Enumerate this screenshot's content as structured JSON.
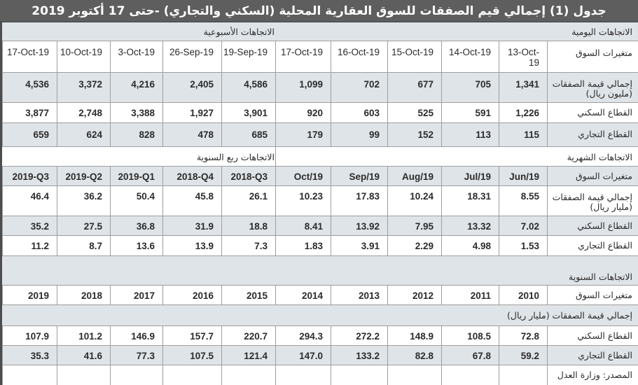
{
  "title": "جدول (1) إجمالي قيم الصفقات للسوق العقارية المحلية (السكني والتجاري) -حتى 17 أكتوبر 2019",
  "daily_weekly": {
    "daily_title": "الاتجاهات اليومية",
    "weekly_title": "الاتجاهات الأسبوعية",
    "row_labels": {
      "header": "متغيرات السوق",
      "total": "إجمالي قيمة الصفقات (مليون ريال)",
      "residential": "القطاع السكني",
      "commercial": "القطاع التجاري"
    },
    "columns": [
      "13-Oct-19",
      "14-Oct-19",
      "15-Oct-19",
      "16-Oct-19",
      "17-Oct-19",
      "19-Sep-19",
      "26-Sep-19",
      "3-Oct-19",
      "10-Oct-19",
      "17-Oct-19"
    ],
    "total": [
      "1,341",
      "705",
      "677",
      "702",
      "1,099",
      "4,586",
      "2,405",
      "4,216",
      "3,372",
      "4,536"
    ],
    "residential": [
      "1,226",
      "591",
      "525",
      "603",
      "920",
      "3,901",
      "1,927",
      "3,388",
      "2,748",
      "3,877"
    ],
    "commercial": [
      "115",
      "113",
      "152",
      "99",
      "179",
      "685",
      "478",
      "828",
      "624",
      "659"
    ]
  },
  "monthly_quarterly": {
    "monthly_title": "الاتجاهات الشهرية",
    "quarterly_title": "الاتجاهات ربع السنوية",
    "row_labels": {
      "header": "متغيرات السوق",
      "total": "إجمالي قيمة الصفقات (مليار ريال)",
      "residential": "القطاع السكني",
      "commercial": "القطاع التجاري"
    },
    "columns": [
      "Jun/19",
      "Jul/19",
      "Aug/19",
      "Sep/19",
      "Oct/19",
      "2018-Q3",
      "2018-Q4",
      "2019-Q1",
      "2019-Q2",
      "2019-Q3"
    ],
    "total": [
      "8.55",
      "18.31",
      "10.24",
      "17.83",
      "10.23",
      "26.1",
      "45.8",
      "50.4",
      "36.2",
      "46.4"
    ],
    "residential": [
      "7.02",
      "13.32",
      "7.95",
      "13.92",
      "8.41",
      "18.8",
      "31.9",
      "36.8",
      "27.5",
      "35.2"
    ],
    "commercial": [
      "1.53",
      "4.98",
      "2.29",
      "3.91",
      "1.83",
      "7.3",
      "13.9",
      "13.6",
      "8.7",
      "11.2"
    ]
  },
  "annual": {
    "title": "الاتجاهات السنوية",
    "row_labels": {
      "header": "متغيرات السوق",
      "total": "إجمالي قيمة الصفقات (مليار ريال)",
      "residential": "القطاع السكني",
      "commercial": "القطاع التجاري"
    },
    "columns": [
      "2010",
      "2011",
      "2012",
      "2013",
      "2014",
      "2015",
      "2016",
      "2017",
      "2018",
      "2019"
    ],
    "residential": [
      "72.8",
      "108.5",
      "148.9",
      "272.2",
      "294.3",
      "220.7",
      "157.7",
      "146.9",
      "101.2",
      "107.9"
    ],
    "commercial": [
      "59.2",
      "67.8",
      "82.8",
      "133.2",
      "147.0",
      "121.4",
      "107.5",
      "77.3",
      "41.6",
      "35.3"
    ]
  },
  "source": "المصدر: وزارة العدل"
}
